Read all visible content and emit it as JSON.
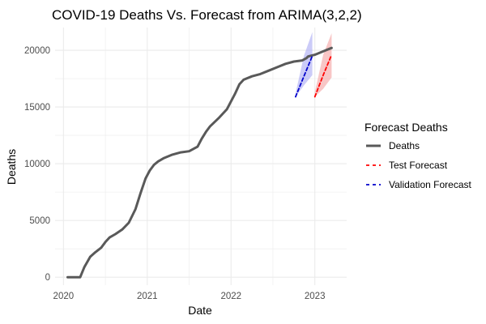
{
  "chart_data": {
    "type": "line",
    "title": "COVID-19 Deaths Vs. Forecast from ARIMA(3,2,2)",
    "xlabel": "Date",
    "ylabel": "Deaths",
    "xlim": [
      2019.9,
      2023.38
    ],
    "ylim": [
      -700,
      22000
    ],
    "x_ticks": [
      2020,
      2021,
      2022,
      2023
    ],
    "x_tick_labels": [
      "2020",
      "2021",
      "2022",
      "2023"
    ],
    "y_ticks": [
      0,
      5000,
      10000,
      15000,
      20000
    ],
    "y_tick_labels": [
      "0",
      "5000",
      "10000",
      "15000",
      "20000"
    ],
    "grid": true,
    "legend_title": "Forecast Deaths",
    "legend_position": "right",
    "colors": {
      "deaths": "#595959",
      "test": "#ff0000",
      "validation": "#0000cc",
      "test_band": "#f4a0a0",
      "validation_band": "#a8a8f4",
      "grid": "#ebebeb"
    },
    "series": [
      {
        "name": "Deaths",
        "style": "solid",
        "x": [
          2020.05,
          2020.2,
          2020.25,
          2020.32,
          2020.38,
          2020.45,
          2020.5,
          2020.55,
          2020.62,
          2020.7,
          2020.78,
          2020.86,
          2020.92,
          2020.98,
          2021.03,
          2021.08,
          2021.13,
          2021.2,
          2021.3,
          2021.4,
          2021.5,
          2021.6,
          2021.65,
          2021.7,
          2021.75,
          2021.85,
          2021.95,
          2022.05,
          2022.1,
          2022.15,
          2022.25,
          2022.35,
          2022.45,
          2022.55,
          2022.65,
          2022.75,
          2022.85,
          2022.9,
          2022.92,
          2023.0,
          2023.1,
          2023.2
        ],
        "values": [
          0,
          0,
          900,
          1800,
          2200,
          2600,
          3100,
          3500,
          3800,
          4200,
          4800,
          6000,
          7400,
          8700,
          9400,
          9900,
          10200,
          10500,
          10800,
          11000,
          11100,
          11500,
          12200,
          12800,
          13300,
          14000,
          14800,
          16200,
          17000,
          17400,
          17700,
          17900,
          18200,
          18500,
          18800,
          19000,
          19100,
          19300,
          19450,
          19600,
          19900,
          20200
        ]
      },
      {
        "name": "Test Forecast",
        "style": "dashed",
        "x": [
          2023.0,
          2023.1,
          2023.2
        ],
        "values": [
          15900,
          17800,
          19600
        ],
        "upper": [
          16300,
          19600,
          21500
        ],
        "lower": [
          15900,
          16600,
          17600
        ]
      },
      {
        "name": "Validation Forecast",
        "style": "dashed",
        "x": [
          2022.77,
          2022.87,
          2022.97
        ],
        "values": [
          15900,
          17700,
          19500
        ],
        "upper": [
          16200,
          19500,
          21600
        ],
        "lower": [
          15900,
          16900,
          17800
        ]
      }
    ]
  }
}
